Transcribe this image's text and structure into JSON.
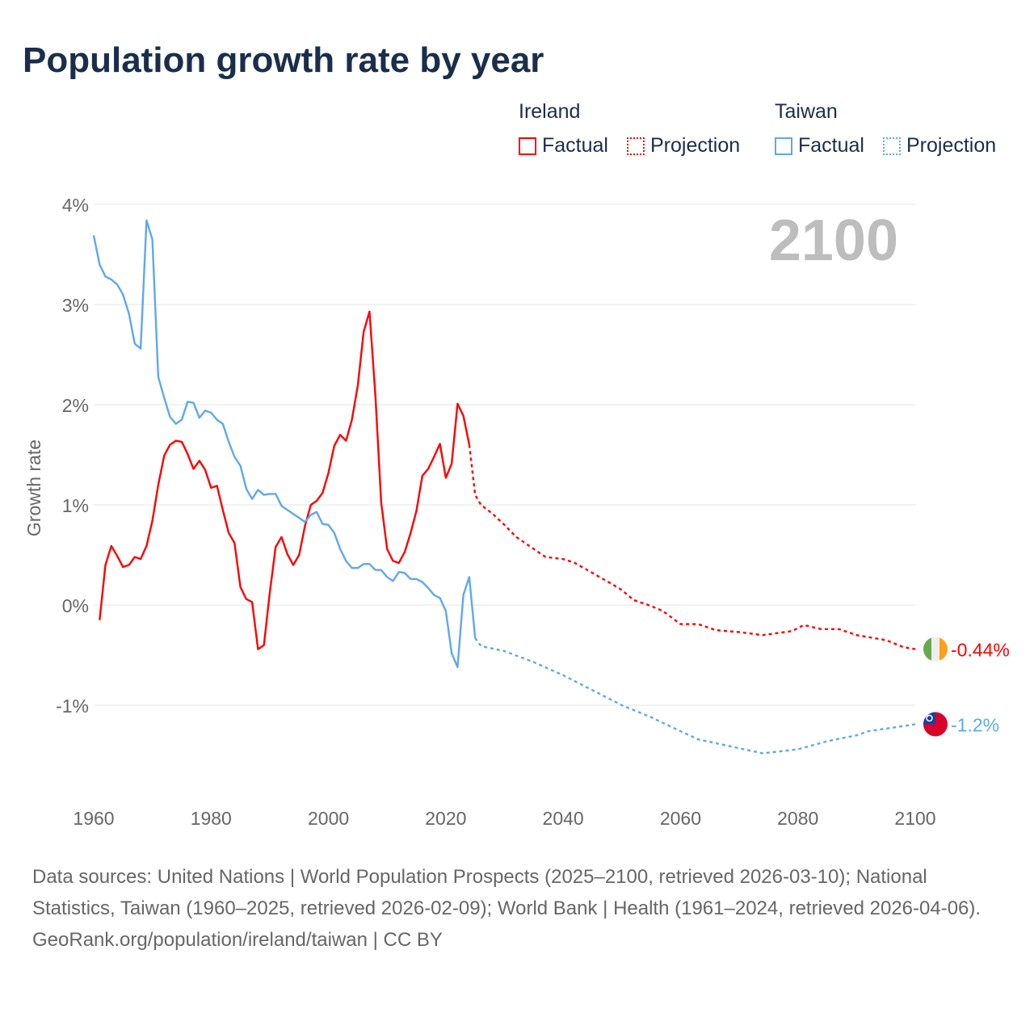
{
  "title": "Population growth rate by year",
  "legend": {
    "groups": [
      {
        "name": "Ireland",
        "factual": "Factual",
        "projection": "Projection",
        "color": "#ff0000"
      },
      {
        "name": "Taiwan",
        "factual": "Factual",
        "projection": "Projection",
        "color": "#5ea8ee"
      }
    ]
  },
  "year_label": "2100",
  "footer": {
    "sources": "Data sources: United Nations | World Population Prospects (2025–2100, retrieved 2026-03-10); National Statistics, Taiwan (1960–2025, retrieved 2026-02-09); World Bank | Health (1961–2024, retrieved 2026-04-06).",
    "credit": "GeoRank.org/population/ireland/taiwan | CC BY"
  },
  "chart_data": {
    "type": "line",
    "title": "Population growth rate by year",
    "xlabel": "",
    "ylabel": "Growth rate",
    "xlim": [
      1960,
      2100
    ],
    "ylim": [
      -1.5,
      4
    ],
    "x_ticks": [
      "1960",
      "1980",
      "2000",
      "2020",
      "2040",
      "2060",
      "2080",
      "2100"
    ],
    "y_ticks": [
      {
        "v": 4,
        "label": "4%"
      },
      {
        "v": 3,
        "label": "3%"
      },
      {
        "v": 2,
        "label": "2%"
      },
      {
        "v": 1,
        "label": "1%"
      },
      {
        "v": 0,
        "label": "0%"
      },
      {
        "v": -1,
        "label": "-1%"
      }
    ],
    "grid": true,
    "legend_position": "top-right",
    "series": [
      {
        "name": "Ireland",
        "color": "#ff0000",
        "end_label": "-0.44%",
        "flag": "ireland",
        "factual": [
          [
            1961,
            -0.15
          ],
          [
            1962,
            0.4
          ],
          [
            1963,
            0.59
          ],
          [
            1964,
            0.49
          ],
          [
            1965,
            0.38
          ],
          [
            1966,
            0.4
          ],
          [
            1967,
            0.48
          ],
          [
            1968,
            0.46
          ],
          [
            1969,
            0.59
          ],
          [
            1970,
            0.84
          ],
          [
            1971,
            1.2
          ],
          [
            1972,
            1.49
          ],
          [
            1973,
            1.6
          ],
          [
            1974,
            1.64
          ],
          [
            1975,
            1.63
          ],
          [
            1976,
            1.51
          ],
          [
            1977,
            1.36
          ],
          [
            1978,
            1.44
          ],
          [
            1979,
            1.35
          ],
          [
            1980,
            1.17
          ],
          [
            1981,
            1.19
          ],
          [
            1982,
            0.95
          ],
          [
            1983,
            0.72
          ],
          [
            1984,
            0.62
          ],
          [
            1985,
            0.18
          ],
          [
            1986,
            0.06
          ],
          [
            1987,
            0.03
          ],
          [
            1988,
            -0.44
          ],
          [
            1989,
            -0.4
          ],
          [
            1990,
            0.12
          ],
          [
            1991,
            0.58
          ],
          [
            1992,
            0.68
          ],
          [
            1993,
            0.51
          ],
          [
            1994,
            0.4
          ],
          [
            1995,
            0.5
          ],
          [
            1996,
            0.79
          ],
          [
            1997,
            1.0
          ],
          [
            1998,
            1.04
          ],
          [
            1999,
            1.12
          ],
          [
            2000,
            1.32
          ],
          [
            2001,
            1.59
          ],
          [
            2002,
            1.7
          ],
          [
            2003,
            1.64
          ],
          [
            2004,
            1.85
          ],
          [
            2005,
            2.19
          ],
          [
            2006,
            2.73
          ],
          [
            2007,
            2.93
          ],
          [
            2008,
            2.09
          ],
          [
            2009,
            1.02
          ],
          [
            2010,
            0.56
          ],
          [
            2011,
            0.44
          ],
          [
            2012,
            0.42
          ],
          [
            2013,
            0.53
          ],
          [
            2014,
            0.72
          ],
          [
            2015,
            0.94
          ],
          [
            2016,
            1.29
          ],
          [
            2017,
            1.36
          ],
          [
            2018,
            1.48
          ],
          [
            2019,
            1.61
          ],
          [
            2020,
            1.27
          ],
          [
            2021,
            1.41
          ],
          [
            2022,
            2.01
          ],
          [
            2023,
            1.89
          ],
          [
            2024,
            1.6
          ]
        ],
        "projection": [
          [
            2024,
            1.6
          ],
          [
            2025,
            1.1
          ],
          [
            2026,
            1.0
          ],
          [
            2028,
            0.91
          ],
          [
            2030,
            0.8
          ],
          [
            2032,
            0.68
          ],
          [
            2035,
            0.56
          ],
          [
            2037,
            0.48
          ],
          [
            2040,
            0.46
          ],
          [
            2042,
            0.42
          ],
          [
            2045,
            0.32
          ],
          [
            2048,
            0.22
          ],
          [
            2050,
            0.15
          ],
          [
            2052,
            0.05
          ],
          [
            2055,
            -0.01
          ],
          [
            2057,
            -0.06
          ],
          [
            2060,
            -0.19
          ],
          [
            2063,
            -0.19
          ],
          [
            2066,
            -0.25
          ],
          [
            2070,
            -0.27
          ],
          [
            2074,
            -0.3
          ],
          [
            2079,
            -0.26
          ],
          [
            2081,
            -0.2
          ],
          [
            2084,
            -0.24
          ],
          [
            2087,
            -0.24
          ],
          [
            2090,
            -0.3
          ],
          [
            2095,
            -0.35
          ],
          [
            2098,
            -0.42
          ],
          [
            2100,
            -0.44
          ]
        ]
      },
      {
        "name": "Taiwan",
        "color": "#5ea8ee",
        "end_label": "-1.2%",
        "flag": "taiwan",
        "factual": [
          [
            1960,
            3.69
          ],
          [
            1961,
            3.4
          ],
          [
            1962,
            3.28
          ],
          [
            1963,
            3.25
          ],
          [
            1964,
            3.2
          ],
          [
            1965,
            3.1
          ],
          [
            1966,
            2.91
          ],
          [
            1967,
            2.61
          ],
          [
            1968,
            2.56
          ],
          [
            1969,
            3.84
          ],
          [
            1970,
            3.65
          ],
          [
            1971,
            2.28
          ],
          [
            1972,
            2.07
          ],
          [
            1973,
            1.88
          ],
          [
            1974,
            1.81
          ],
          [
            1975,
            1.85
          ],
          [
            1976,
            2.03
          ],
          [
            1977,
            2.02
          ],
          [
            1978,
            1.87
          ],
          [
            1979,
            1.94
          ],
          [
            1980,
            1.92
          ],
          [
            1981,
            1.85
          ],
          [
            1982,
            1.81
          ],
          [
            1983,
            1.63
          ],
          [
            1984,
            1.48
          ],
          [
            1985,
            1.39
          ],
          [
            1986,
            1.16
          ],
          [
            1987,
            1.06
          ],
          [
            1988,
            1.15
          ],
          [
            1989,
            1.1
          ],
          [
            1990,
            1.11
          ],
          [
            1991,
            1.11
          ],
          [
            1992,
            0.99
          ],
          [
            1993,
            0.95
          ],
          [
            1994,
            0.91
          ],
          [
            1995,
            0.87
          ],
          [
            1996,
            0.83
          ],
          [
            1997,
            0.9
          ],
          [
            1998,
            0.93
          ],
          [
            1999,
            0.81
          ],
          [
            2000,
            0.8
          ],
          [
            2001,
            0.72
          ],
          [
            2002,
            0.56
          ],
          [
            2003,
            0.44
          ],
          [
            2004,
            0.37
          ],
          [
            2005,
            0.37
          ],
          [
            2006,
            0.41
          ],
          [
            2007,
            0.41
          ],
          [
            2008,
            0.35
          ],
          [
            2009,
            0.35
          ],
          [
            2010,
            0.28
          ],
          [
            2011,
            0.24
          ],
          [
            2012,
            0.33
          ],
          [
            2013,
            0.32
          ],
          [
            2014,
            0.26
          ],
          [
            2015,
            0.26
          ],
          [
            2016,
            0.23
          ],
          [
            2017,
            0.17
          ],
          [
            2018,
            0.1
          ],
          [
            2019,
            0.07
          ],
          [
            2020,
            -0.06
          ],
          [
            2021,
            -0.48
          ],
          [
            2022,
            -0.62
          ],
          [
            2023,
            0.1
          ],
          [
            2024,
            0.28
          ],
          [
            2025,
            -0.33
          ]
        ],
        "projection": [
          [
            2025,
            -0.33
          ],
          [
            2026,
            -0.41
          ],
          [
            2030,
            -0.46
          ],
          [
            2035,
            -0.57
          ],
          [
            2040,
            -0.7
          ],
          [
            2045,
            -0.85
          ],
          [
            2050,
            -1.0
          ],
          [
            2055,
            -1.12
          ],
          [
            2060,
            -1.26
          ],
          [
            2063,
            -1.34
          ],
          [
            2070,
            -1.43
          ],
          [
            2074,
            -1.48
          ],
          [
            2080,
            -1.44
          ],
          [
            2085,
            -1.36
          ],
          [
            2090,
            -1.3
          ],
          [
            2092,
            -1.26
          ],
          [
            2100,
            -1.19
          ]
        ]
      }
    ]
  }
}
